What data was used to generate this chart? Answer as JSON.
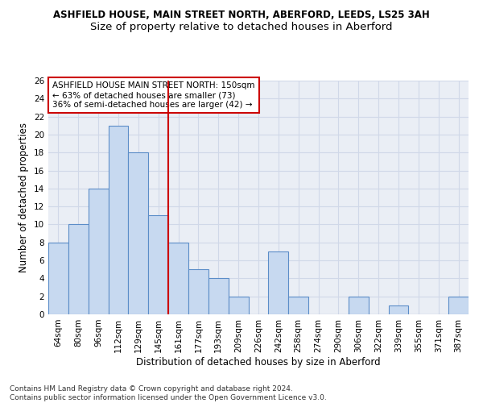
{
  "title": "ASHFIELD HOUSE, MAIN STREET NORTH, ABERFORD, LEEDS, LS25 3AH",
  "subtitle": "Size of property relative to detached houses in Aberford",
  "xlabel": "Distribution of detached houses by size in Aberford",
  "ylabel": "Number of detached properties",
  "categories": [
    "64sqm",
    "80sqm",
    "96sqm",
    "112sqm",
    "129sqm",
    "145sqm",
    "161sqm",
    "177sqm",
    "193sqm",
    "209sqm",
    "226sqm",
    "242sqm",
    "258sqm",
    "274sqm",
    "290sqm",
    "306sqm",
    "322sqm",
    "339sqm",
    "355sqm",
    "371sqm",
    "387sqm"
  ],
  "values": [
    8,
    10,
    14,
    21,
    18,
    11,
    8,
    5,
    4,
    2,
    0,
    7,
    2,
    0,
    0,
    2,
    0,
    1,
    0,
    0,
    2
  ],
  "bar_color": "#c7d9f0",
  "bar_edge_color": "#5b8dc8",
  "vline_color": "#cc0000",
  "annotation_text": "ASHFIELD HOUSE MAIN STREET NORTH: 150sqm\n← 63% of detached houses are smaller (73)\n36% of semi-detached houses are larger (42) →",
  "annotation_box_color": "#ffffff",
  "annotation_box_edge_color": "#cc0000",
  "ylim": [
    0,
    26
  ],
  "yticks": [
    0,
    2,
    4,
    6,
    8,
    10,
    12,
    14,
    16,
    18,
    20,
    22,
    24,
    26
  ],
  "grid_color": "#d0d8e8",
  "background_color": "#eaeef5",
  "footer": "Contains HM Land Registry data © Crown copyright and database right 2024.\nContains public sector information licensed under the Open Government Licence v3.0.",
  "title_fontsize": 8.5,
  "subtitle_fontsize": 9.5,
  "xlabel_fontsize": 8.5,
  "ylabel_fontsize": 8.5,
  "tick_fontsize": 7.5,
  "annotation_fontsize": 7.5,
  "footer_fontsize": 6.5
}
